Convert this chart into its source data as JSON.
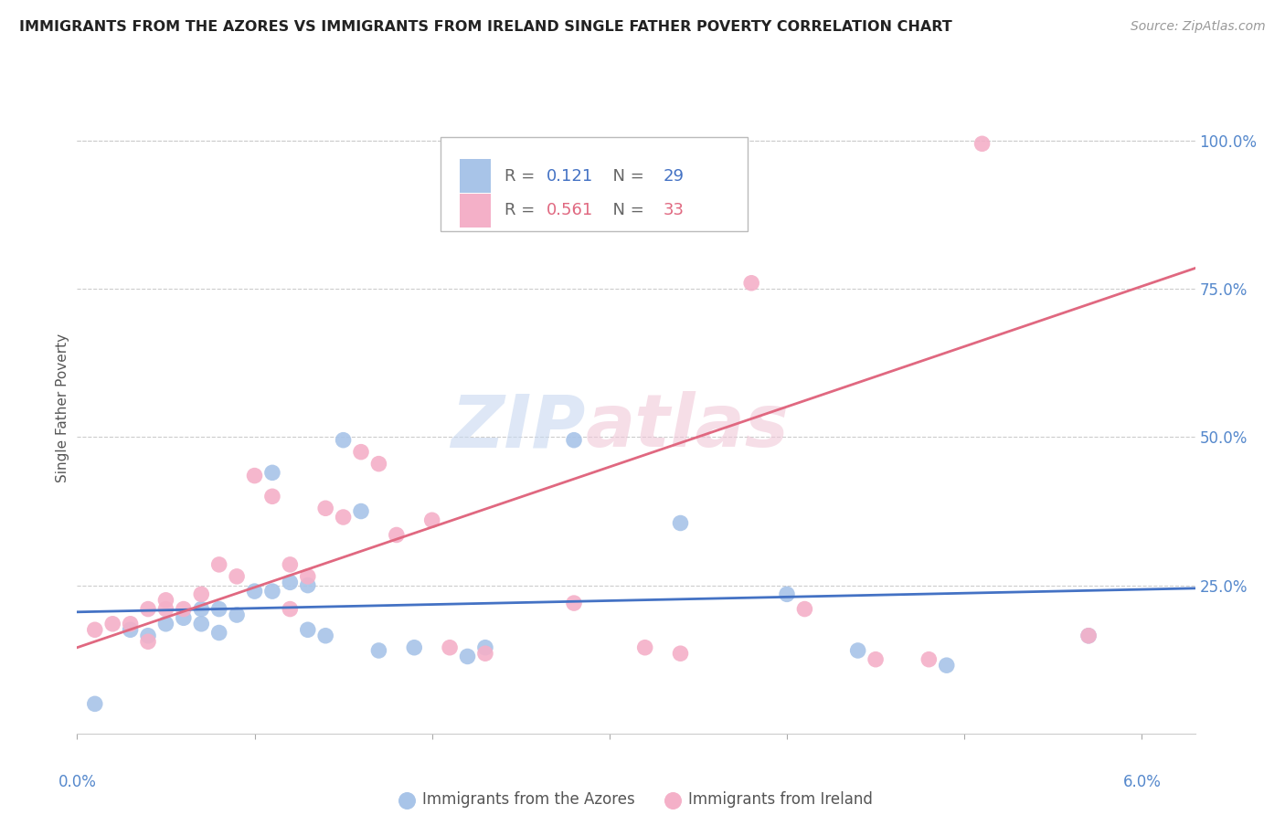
{
  "title": "IMMIGRANTS FROM THE AZORES VS IMMIGRANTS FROM IRELAND SINGLE FATHER POVERTY CORRELATION CHART",
  "source": "Source: ZipAtlas.com",
  "ylabel": "Single Father Poverty",
  "ytick_labels": [
    "100.0%",
    "75.0%",
    "50.0%",
    "25.0%"
  ],
  "ytick_values": [
    1.0,
    0.75,
    0.5,
    0.25
  ],
  "xlim": [
    0.0,
    0.063
  ],
  "ylim": [
    0.0,
    1.1
  ],
  "legend_azores_r": "0.121",
  "legend_azores_n": "29",
  "legend_ireland_r": "0.561",
  "legend_ireland_n": "33",
  "color_azores": "#a8c4e8",
  "color_ireland": "#f4b0c8",
  "color_azores_line": "#4472c4",
  "color_ireland_line": "#e06880",
  "color_title": "#222222",
  "color_axis_labels": "#5588cc",
  "color_source": "#999999",
  "azores_x": [
    0.001,
    0.003,
    0.004,
    0.005,
    0.006,
    0.007,
    0.007,
    0.008,
    0.008,
    0.009,
    0.01,
    0.011,
    0.011,
    0.012,
    0.013,
    0.013,
    0.014,
    0.015,
    0.016,
    0.017,
    0.019,
    0.022,
    0.023,
    0.028,
    0.034,
    0.04,
    0.044,
    0.049,
    0.057
  ],
  "azores_y": [
    0.05,
    0.175,
    0.165,
    0.185,
    0.195,
    0.185,
    0.21,
    0.17,
    0.21,
    0.2,
    0.24,
    0.44,
    0.24,
    0.255,
    0.175,
    0.25,
    0.165,
    0.495,
    0.375,
    0.14,
    0.145,
    0.13,
    0.145,
    0.495,
    0.355,
    0.235,
    0.14,
    0.115,
    0.165
  ],
  "ireland_x": [
    0.001,
    0.002,
    0.003,
    0.004,
    0.004,
    0.005,
    0.005,
    0.006,
    0.007,
    0.008,
    0.009,
    0.01,
    0.011,
    0.012,
    0.012,
    0.013,
    0.014,
    0.015,
    0.016,
    0.017,
    0.018,
    0.02,
    0.021,
    0.023,
    0.028,
    0.032,
    0.034,
    0.038,
    0.041,
    0.045,
    0.048,
    0.051,
    0.057
  ],
  "ireland_y": [
    0.175,
    0.185,
    0.185,
    0.21,
    0.155,
    0.21,
    0.225,
    0.21,
    0.235,
    0.285,
    0.265,
    0.435,
    0.4,
    0.21,
    0.285,
    0.265,
    0.38,
    0.365,
    0.475,
    0.455,
    0.335,
    0.36,
    0.145,
    0.135,
    0.22,
    0.145,
    0.135,
    0.76,
    0.21,
    0.125,
    0.125,
    0.995,
    0.165
  ],
  "azores_line_x": [
    0.0,
    0.063
  ],
  "azores_line_y": [
    0.205,
    0.245
  ],
  "ireland_line_x": [
    0.0,
    0.063
  ],
  "ireland_line_y": [
    0.145,
    0.785
  ]
}
